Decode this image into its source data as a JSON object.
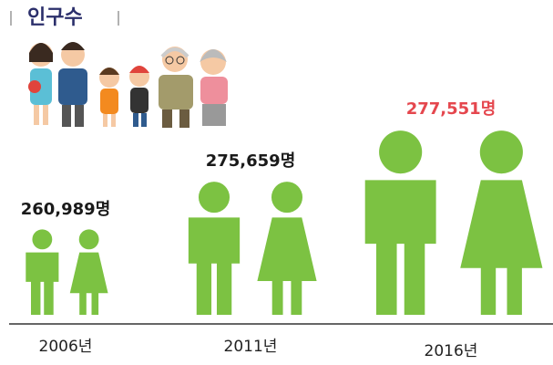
{
  "title": "인구수",
  "chart_data": {
    "type": "pictogram",
    "categories": [
      "2006년",
      "2011년",
      "2016년"
    ],
    "values": [
      260989,
      275659,
      277551
    ],
    "value_labels": [
      "260,989명",
      "275,659명",
      "277,551명"
    ],
    "color": "#7cc242",
    "label_colors": [
      "#1a1a1a",
      "#1a1a1a",
      "#e5474e"
    ]
  }
}
